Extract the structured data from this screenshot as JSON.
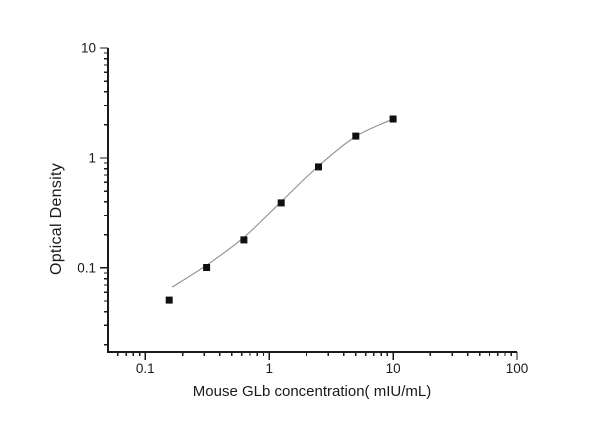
{
  "chart_data": {
    "type": "scatter",
    "title": "",
    "xlabel": "Mouse GLb concentration( mIU/mL)",
    "ylabel": "Optical Density",
    "x_scale": "log",
    "y_scale": "log",
    "xlim": [
      0.05,
      100
    ],
    "ylim": [
      0.0172,
      10
    ],
    "x_major_ticks": [
      0.1,
      1,
      10,
      100
    ],
    "x_tick_labels": [
      "0.1",
      "1",
      "10",
      "100"
    ],
    "y_major_ticks": [
      0.1,
      1,
      10
    ],
    "y_tick_labels": [
      "0.1",
      "1",
      "10"
    ],
    "grid": false,
    "legend": "none",
    "series": [
      {
        "name": "standards",
        "type": "scatter",
        "marker": "filled-square",
        "color": "#101010",
        "points": [
          [
            0.156,
            0.051
          ],
          [
            0.3125,
            0.101
          ],
          [
            0.625,
            0.18
          ],
          [
            1.25,
            0.39
          ],
          [
            2.5,
            0.83
          ],
          [
            5,
            1.58
          ],
          [
            10,
            2.26
          ]
        ]
      },
      {
        "name": "fitted-curve",
        "type": "line",
        "color": "#8f8f8f",
        "points": [
          [
            0.165,
            0.067
          ],
          [
            0.3125,
            0.106
          ],
          [
            0.625,
            0.19
          ],
          [
            1.25,
            0.4
          ],
          [
            2.5,
            0.845
          ],
          [
            5,
            1.57
          ],
          [
            10,
            2.26
          ]
        ]
      }
    ],
    "colors": {
      "axis": "#1a1a1a",
      "text": "#1a1a1a",
      "background": "#ffffff"
    }
  }
}
